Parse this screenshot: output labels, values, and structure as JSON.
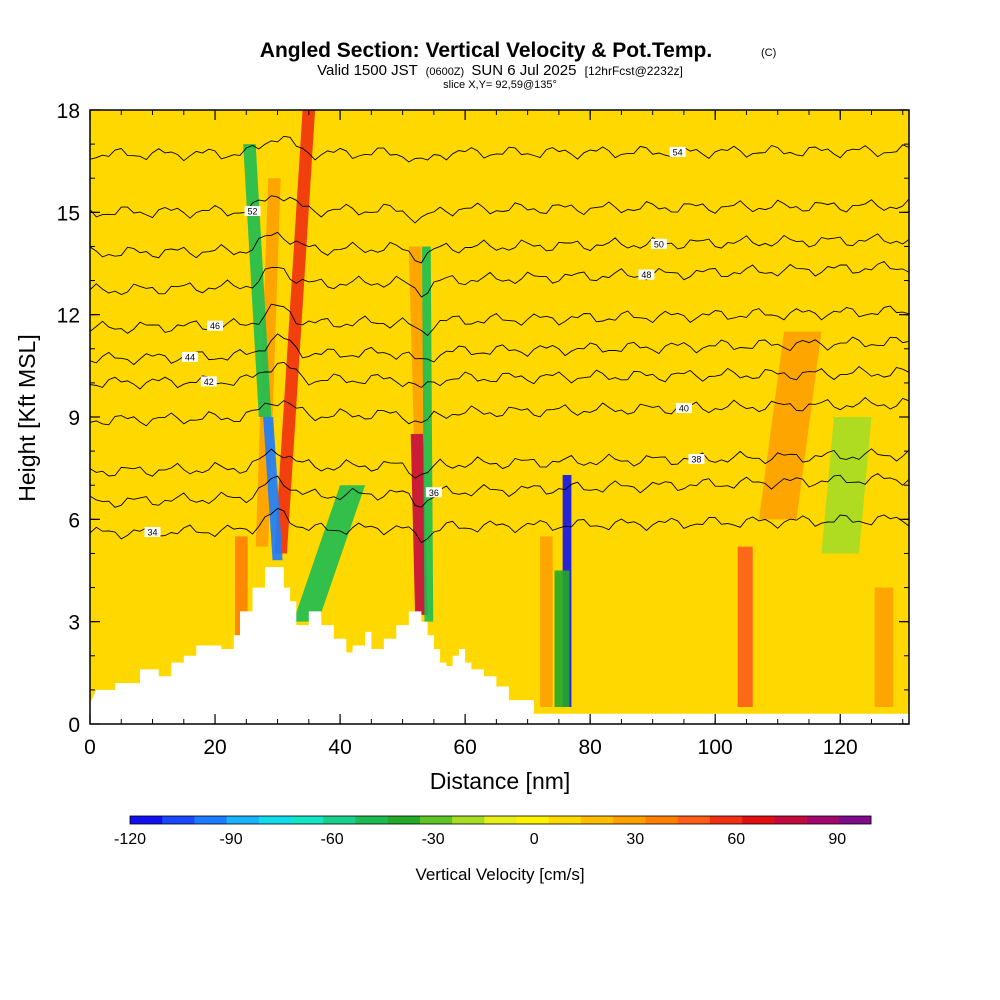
{
  "chart_data": {
    "type": "heatmap",
    "title": "Angled Section: Vertical Velocity & Pot.Temp.",
    "title_mark": "(C)",
    "subtitle_parts": [
      "Valid 1500 JST",
      "(0600Z)",
      "SUN 6 Jul 2025",
      "[12hrFcst@2232z]"
    ],
    "slice_label": "slice X,Y= 92,59@135°",
    "xlabel": "Distance [nm]",
    "ylabel": "Height [Kft MSL]",
    "xlim": [
      0,
      131
    ],
    "ylim": [
      0,
      18
    ],
    "x_ticks": [
      "0",
      "20",
      "40",
      "60",
      "80",
      "100",
      "120"
    ],
    "y_ticks": [
      "0",
      "3",
      "6",
      "9",
      "12",
      "15",
      "18"
    ],
    "background_value": 5,
    "colorbar": {
      "label": "Vertical Velocity [cm/s]",
      "ticks": [
        "-120",
        "-90",
        "-60",
        "-30",
        "0",
        "30",
        "60",
        "90"
      ],
      "range": [
        -120,
        100
      ],
      "colors": [
        "#1010f0",
        "#1848ff",
        "#1a7cff",
        "#18b4ff",
        "#10dcec",
        "#12e6c4",
        "#18d08c",
        "#1cbc52",
        "#24aa28",
        "#5cc424",
        "#a6dc24",
        "#e6f018",
        "#fff200",
        "#ffd800",
        "#ffbc00",
        "#ffa000",
        "#ff8000",
        "#ff5c18",
        "#f03010",
        "#e00e10",
        "#c40a3c",
        "#a2086c",
        "#7e0c8a"
      ]
    },
    "terrain": [
      [
        0,
        0.6
      ],
      [
        1,
        1.0
      ],
      [
        4,
        1.0
      ],
      [
        4,
        1.2
      ],
      [
        8,
        1.2
      ],
      [
        8,
        1.6
      ],
      [
        11,
        1.6
      ],
      [
        11,
        1.4
      ],
      [
        13,
        1.4
      ],
      [
        13,
        1.8
      ],
      [
        15,
        1.8
      ],
      [
        15,
        2.0
      ],
      [
        17,
        2.0
      ],
      [
        17,
        2.3
      ],
      [
        21,
        2.3
      ],
      [
        21,
        2.2
      ],
      [
        23,
        2.2
      ],
      [
        23,
        2.6
      ],
      [
        24,
        2.6
      ],
      [
        24,
        3.3
      ],
      [
        26,
        3.3
      ],
      [
        26,
        4.0
      ],
      [
        28,
        4.0
      ],
      [
        28,
        4.6
      ],
      [
        31,
        4.6
      ],
      [
        31,
        4.0
      ],
      [
        32,
        4.0
      ],
      [
        32,
        3.6
      ],
      [
        33,
        3.6
      ],
      [
        33,
        2.9
      ],
      [
        35,
        2.9
      ],
      [
        35,
        3.3
      ],
      [
        37,
        3.3
      ],
      [
        37,
        2.9
      ],
      [
        39,
        2.9
      ],
      [
        39,
        2.5
      ],
      [
        41,
        2.5
      ],
      [
        41,
        2.1
      ],
      [
        42,
        2.1
      ],
      [
        42,
        2.3
      ],
      [
        44,
        2.3
      ],
      [
        44,
        2.7
      ],
      [
        45,
        2.7
      ],
      [
        45,
        2.2
      ],
      [
        47,
        2.2
      ],
      [
        47,
        2.5
      ],
      [
        49,
        2.5
      ],
      [
        49,
        2.9
      ],
      [
        51,
        2.9
      ],
      [
        51,
        3.3
      ],
      [
        53,
        3.3
      ],
      [
        53,
        3.0
      ],
      [
        54,
        3.0
      ],
      [
        54,
        2.6
      ],
      [
        55,
        2.6
      ],
      [
        55,
        2.2
      ],
      [
        56,
        2.2
      ],
      [
        56,
        1.8
      ],
      [
        57,
        1.8
      ],
      [
        57,
        1.7
      ],
      [
        58,
        1.7
      ],
      [
        58,
        2.0
      ],
      [
        59,
        2.0
      ],
      [
        59,
        2.2
      ],
      [
        60,
        2.2
      ],
      [
        60,
        1.8
      ],
      [
        61,
        1.8
      ],
      [
        61,
        1.6
      ],
      [
        63,
        1.6
      ],
      [
        63,
        1.4
      ],
      [
        65,
        1.4
      ],
      [
        65,
        1.1
      ],
      [
        67,
        1.1
      ],
      [
        67,
        0.7
      ],
      [
        71,
        0.7
      ],
      [
        71,
        0.3
      ],
      [
        131,
        0.3
      ]
    ],
    "updrafts": [
      {
        "x0": 30.5,
        "x1": 35.0,
        "z0": 5.0,
        "z1": 18.0,
        "w": 1.0,
        "value": 55
      },
      {
        "x0": 27.5,
        "x1": 29.5,
        "z0": 5.2,
        "z1": 16.0,
        "w": 1.0,
        "value": 30
      },
      {
        "x0": 53.0,
        "x1": 52.3,
        "z0": 3.2,
        "z1": 8.5,
        "w": 1.0,
        "value": 80
      },
      {
        "x0": 52.8,
        "x1": 52.0,
        "z0": 8.5,
        "z1": 14.0,
        "w": 1.0,
        "value": 25
      },
      {
        "x0": 110.0,
        "x1": 114.0,
        "z0": 6.0,
        "z1": 11.5,
        "w": 3.0,
        "value": 28
      },
      {
        "x0": 104.8,
        "x1": 104.8,
        "z0": 0.5,
        "z1": 5.2,
        "w": 1.2,
        "value": 45
      },
      {
        "x0": 24.2,
        "x1": 24.2,
        "z0": 2.6,
        "z1": 5.5,
        "w": 1.0,
        "value": 40
      },
      {
        "x0": 73.0,
        "x1": 73.0,
        "z0": 0.5,
        "z1": 5.5,
        "w": 1.0,
        "value": 30
      },
      {
        "x0": 127.0,
        "x1": 127.0,
        "z0": 0.5,
        "z1": 4.0,
        "w": 1.5,
        "value": 25
      }
    ],
    "downdrafts": [
      {
        "x0": 30.0,
        "x1": 28.5,
        "z0": 4.8,
        "z1": 9.0,
        "w": 0.8,
        "value": -100
      },
      {
        "x0": 28.0,
        "x1": 25.5,
        "z0": 9.0,
        "z1": 17.0,
        "w": 1.0,
        "value": -45
      },
      {
        "x0": 34.5,
        "x1": 42.0,
        "z0": 3.0,
        "z1": 7.0,
        "w": 2.0,
        "value": -45
      },
      {
        "x0": 54.2,
        "x1": 53.8,
        "z0": 3.0,
        "z1": 14.0,
        "w": 0.7,
        "value": -50
      },
      {
        "x0": 76.3,
        "x1": 76.3,
        "z0": 0.5,
        "z1": 7.3,
        "w": 0.7,
        "value": -115
      },
      {
        "x0": 75.5,
        "x1": 75.5,
        "z0": 0.5,
        "z1": 4.5,
        "w": 1.2,
        "value": -40
      },
      {
        "x0": 120.0,
        "x1": 122.0,
        "z0": 5.0,
        "z1": 9.0,
        "w": 3.0,
        "value": -15
      }
    ],
    "contours": [
      {
        "label": "34",
        "label_x": 10,
        "z_left": 5.6,
        "z_right": 6.0
      },
      {
        "label": "36",
        "label_x": 55,
        "z_left": 6.5,
        "z_right": 7.2
      },
      {
        "label": "38",
        "label_x": 97,
        "z_left": 7.4,
        "z_right": 7.9
      },
      {
        "label": "40",
        "label_x": 95,
        "z_left": 8.9,
        "z_right": 9.4
      },
      {
        "label": "42",
        "label_x": 19,
        "z_left": 10.0,
        "z_right": 10.3
      },
      {
        "label": "44",
        "label_x": 16,
        "z_left": 10.7,
        "z_right": 11.2
      },
      {
        "label": "46",
        "label_x": 20,
        "z_left": 11.6,
        "z_right": 12.1
      },
      {
        "label": "48",
        "label_x": 89,
        "z_left": 12.7,
        "z_right": 13.4
      },
      {
        "label": "50",
        "label_x": 91,
        "z_left": 13.8,
        "z_right": 14.2
      },
      {
        "label": "52",
        "label_x": 26,
        "z_left": 15.0,
        "z_right": 15.2
      },
      {
        "label": "54",
        "label_x": 94,
        "z_left": 16.7,
        "z_right": 16.8
      }
    ]
  }
}
